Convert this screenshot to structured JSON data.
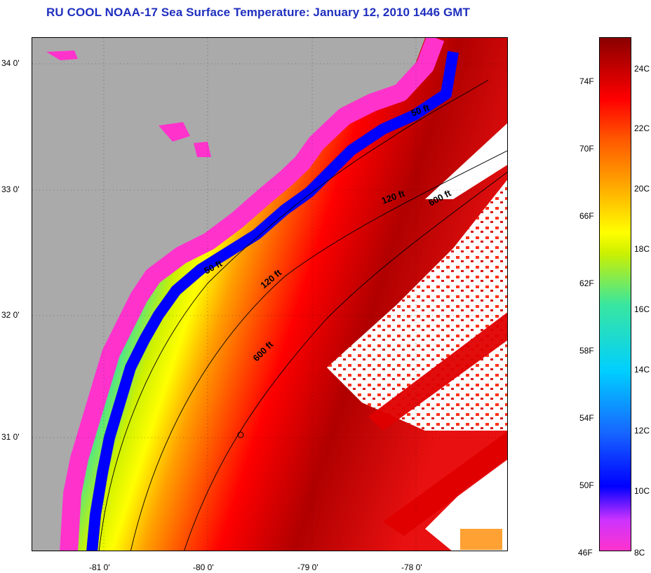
{
  "title": "RU COOL  NOAA-17  Sea Surface Temperature:  January 12, 2010 1446 GMT",
  "map": {
    "lat_labels": [
      "34 0'",
      "33 0'",
      "32 0'",
      "31 0'"
    ],
    "lon_labels": [
      "-81 0'",
      "-80 0'",
      "-79 0'",
      "-78 0'"
    ],
    "contours": [
      "50 ft",
      "50 ft",
      "120 ft",
      "120 ft",
      "600 ft",
      "600 ft"
    ]
  },
  "colorbar": {
    "fahrenheit": [
      "74F",
      "70F",
      "66F",
      "62F",
      "58F",
      "54F",
      "50F",
      "46F"
    ],
    "celsius": [
      "24C",
      "22C",
      "20C",
      "18C",
      "16C",
      "14C",
      "12C",
      "10C",
      "8C"
    ],
    "colors": [
      "#ff33cc",
      "#cc33ff",
      "#0000ff",
      "#1766ff",
      "#00cfff",
      "#39e6a0",
      "#ccf000",
      "#ffff00",
      "#ffa000",
      "#ff5a00",
      "#ff0000",
      "#8a0000"
    ]
  },
  "colors": {
    "land": "#aaaaaa",
    "title": "#1f2fbf",
    "cloud": "#ffffff"
  }
}
